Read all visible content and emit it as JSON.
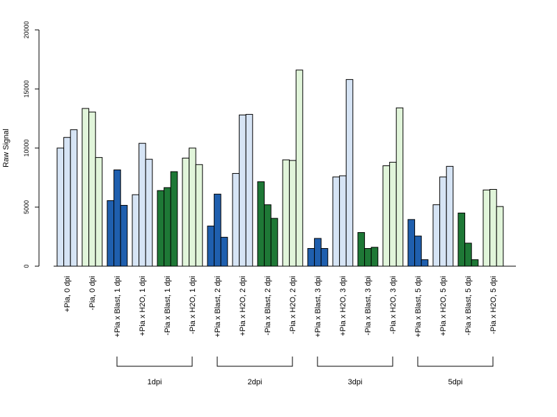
{
  "chart_data": {
    "type": "bar",
    "ylabel": "Raw Signal",
    "ylim": [
      0,
      20000
    ],
    "yticks": [
      0,
      5000,
      10000,
      15000,
      20000
    ],
    "grid": false,
    "categories": [
      "+Pia, 0 dpi",
      "-Pia, 0 dpi",
      "+Pia x Blast, 1 dpi",
      "+Pia x H2O, 1 dpi",
      "-Pia x Blast, 1 dpi",
      "-Pia x H2O, 1 dpi",
      "+Pia x Blast, 2 dpi",
      "+Pia x H2O, 2 dpi",
      "-Pia x Blast, 2 dpi",
      "-Pia x H2O, 2 dpi",
      "+Pia x Blast, 3 dpi",
      "+Pia x H2O, 3 dpi",
      "-Pia x Blast, 3 dpi",
      "-Pia x H2O, 3 dpi",
      "+Pia x Blast, 5 dpi",
      "+Pia x H2O, 5 dpi",
      "-Pia x Blast, 5 dpi",
      "-Pia x H2O, 5 dpi"
    ],
    "colors": [
      "#d6e4f5",
      "#e1f5da",
      "#1f5fae",
      "#d6e4f5",
      "#1e7836",
      "#e1f5da",
      "#1f5fae",
      "#d6e4f5",
      "#1e7836",
      "#e1f5da",
      "#1f5fae",
      "#d6e4f5",
      "#1e7836",
      "#e1f5da",
      "#1f5fae",
      "#d6e4f5",
      "#1e7836",
      "#e1f5da"
    ],
    "values": [
      [
        10000,
        10900,
        11550
      ],
      [
        13350,
        13050,
        9200
      ],
      [
        5550,
        8150,
        5150
      ],
      [
        6050,
        10400,
        9050
      ],
      [
        6400,
        6650,
        8000
      ],
      [
        9150,
        10000,
        8600
      ],
      [
        3400,
        6100,
        2450
      ],
      [
        7850,
        12800,
        12850
      ],
      [
        7150,
        5200,
        4050
      ],
      [
        9000,
        8950,
        16600
      ],
      [
        1500,
        2350,
        1500
      ],
      [
        7550,
        7650,
        15800
      ],
      [
        2850,
        1500,
        1600
      ],
      [
        8500,
        8800,
        13400
      ],
      [
        3950,
        2550,
        550
      ],
      [
        5200,
        7550,
        8450
      ],
      [
        4500,
        1950,
        550
      ],
      [
        6450,
        6500,
        5050
      ]
    ],
    "groups": [
      {
        "label": "1dpi",
        "start": 2,
        "end": 5
      },
      {
        "label": "2dpi",
        "start": 6,
        "end": 9
      },
      {
        "label": "3dpi",
        "start": 10,
        "end": 13
      },
      {
        "label": "5dpi",
        "start": 14,
        "end": 17
      }
    ]
  }
}
